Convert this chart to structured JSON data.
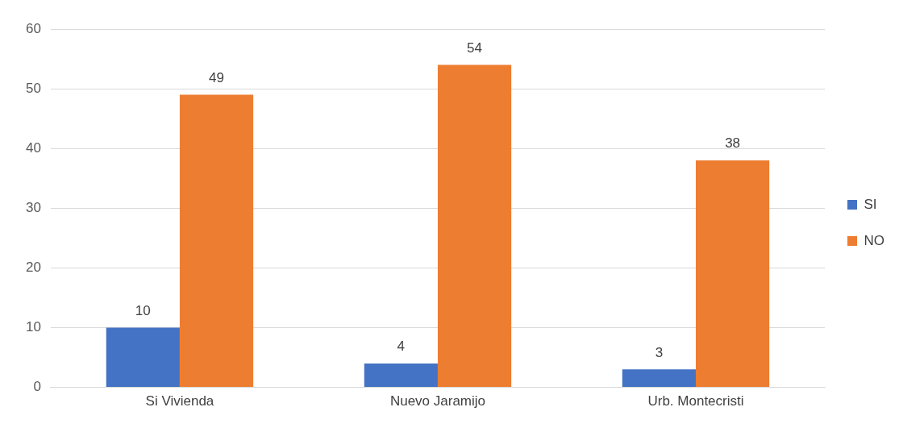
{
  "chart_data": {
    "type": "bar",
    "categories": [
      "Si Vivienda",
      "Nuevo Jaramijo",
      "Urb. Montecristi"
    ],
    "series": [
      {
        "name": "SI",
        "color": "#4472c4",
        "values": [
          10,
          4,
          3
        ]
      },
      {
        "name": "NO",
        "color": "#ed7d31",
        "values": [
          49,
          54,
          38
        ]
      }
    ],
    "ylim": [
      0,
      60
    ],
    "yticks": [
      0,
      10,
      20,
      30,
      40,
      50,
      60
    ],
    "grid": "y",
    "legend": "right",
    "data_labels": true
  }
}
